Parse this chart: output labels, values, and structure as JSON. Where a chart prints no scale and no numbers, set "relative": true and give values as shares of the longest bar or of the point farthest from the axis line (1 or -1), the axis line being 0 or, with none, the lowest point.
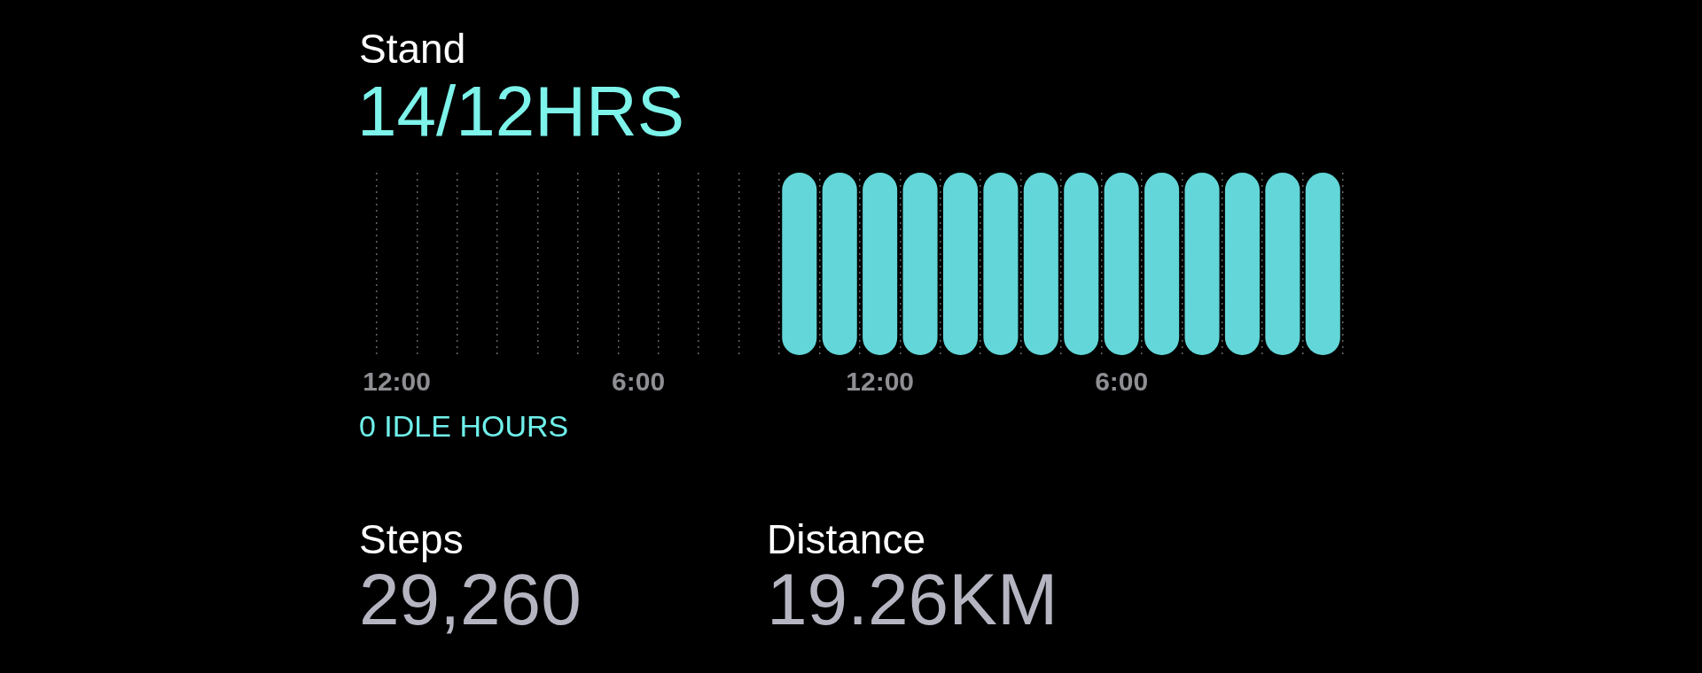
{
  "chart_data": {
    "type": "bar",
    "title": "Stand",
    "subtitle": "14/12HRS",
    "categories": [
      "12:00",
      null,
      null,
      null,
      null,
      null,
      "6:00",
      null,
      null,
      null,
      null,
      null,
      "12:00",
      null,
      null,
      null,
      null,
      null,
      "6:00",
      null,
      null,
      null,
      null,
      null
    ],
    "values": [
      0,
      0,
      0,
      0,
      0,
      0,
      0,
      0,
      0,
      0,
      1,
      1,
      1,
      1,
      1,
      1,
      1,
      1,
      1,
      1,
      1,
      1,
      1,
      1
    ],
    "color": "#62d6d8",
    "relative": true,
    "grid": "x",
    "annotations": [
      "0 IDLE HOURS",
      "Steps",
      "29,260",
      "Distance",
      "19.26KM"
    ]
  }
}
